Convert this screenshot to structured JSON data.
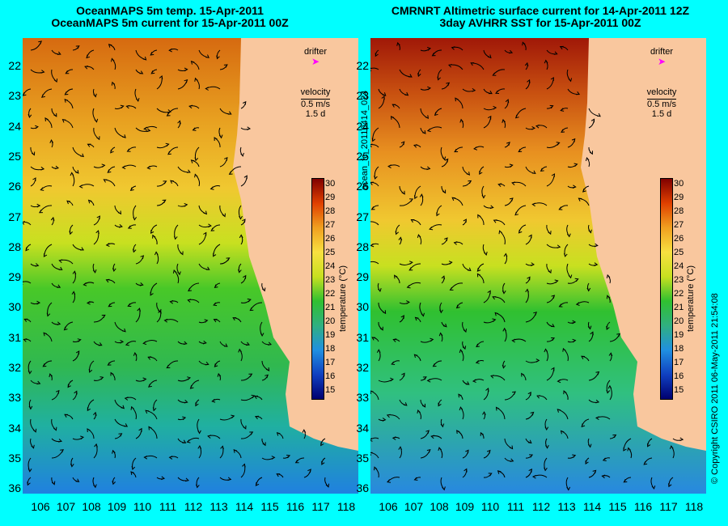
{
  "left_title": [
    "OceanMAPS 5m temp. 15-Apr-2011",
    "OceanMAPS 5m current for 15-Apr-2011 00Z"
  ],
  "right_title": [
    "CMRNRT Altimetric surface current for 14-Apr-2011 12Z",
    "3day AVHRR SST for 15-Apr-2011 00Z"
  ],
  "legend": {
    "drifter": "drifter",
    "velocity": "velocity",
    "speed": "0.5 m/s",
    "duration": "1.5 d"
  },
  "colorbar": {
    "label": "temperature (°C)",
    "ticks": [
      "30",
      "29",
      "28",
      "27",
      "26",
      "25",
      "24",
      "23",
      "22",
      "21",
      "20",
      "19",
      "18",
      "17",
      "16",
      "15"
    ]
  },
  "side_label": "ocean_fc_20110414_024",
  "copyright": "© Copyright CSIRO 2011   06-May-2011 21:54:08",
  "lat_labels": [
    "22",
    "23",
    "24",
    "25",
    "26",
    "27",
    "28",
    "29",
    "30",
    "31",
    "32",
    "33",
    "34",
    "35",
    "36"
  ],
  "lon_labels": [
    "106",
    "107",
    "108",
    "109",
    "110",
    "111",
    "112",
    "113",
    "114",
    "115",
    "116",
    "117",
    "118"
  ],
  "colors": {
    "background": "#00ffff",
    "land": "#f9c79e",
    "drifter": "#ff00ff"
  }
}
